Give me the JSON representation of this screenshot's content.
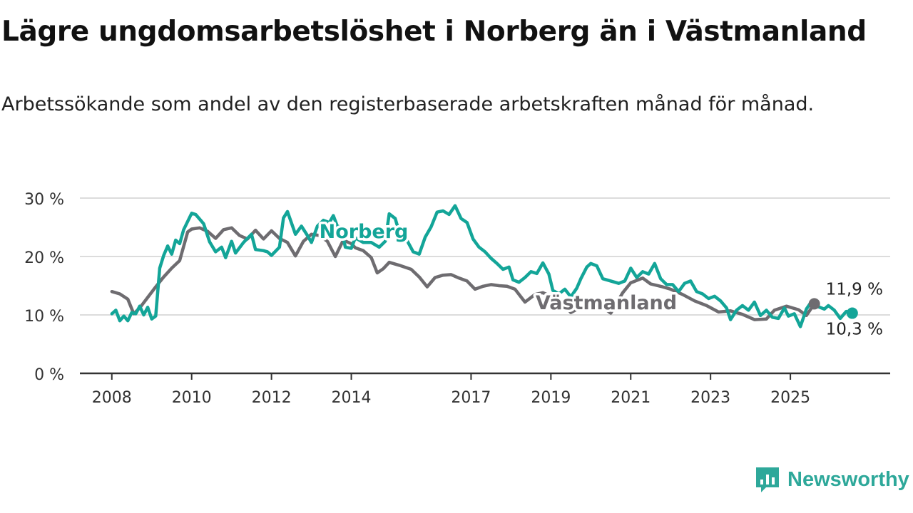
{
  "title": "Lägre ungdomsarbetslöshet i Norberg än i Västmanland",
  "subtitle": "Arbetssökande som andel av den registerbaserade arbetskraften månad för månad.",
  "brand": "Newsworthy",
  "colors": {
    "norberg": "#13a598",
    "vastmanland": "#6e6c70",
    "grid": "#dcdcdc",
    "axis": "#333333"
  },
  "chart_data": {
    "type": "line",
    "ylim": [
      0,
      30
    ],
    "y_ticks": [
      0,
      10,
      20,
      30
    ],
    "y_tick_labels": [
      "0 %",
      "10 %",
      "20 %",
      "30 %"
    ],
    "x_ticks": [
      2008,
      2010,
      2012,
      2014,
      2017,
      2019,
      2021,
      2023,
      2025
    ],
    "x_tick_labels": [
      "2008",
      "2010",
      "2012",
      "2014",
      "2017",
      "2019",
      "2021",
      "2023",
      "2025"
    ],
    "xlim": [
      2007.2,
      2027.5
    ],
    "grid": true,
    "series": [
      {
        "name": "Västmanland",
        "end_label": "11,9 %",
        "points": [
          [
            2008.0,
            14.0
          ],
          [
            2008.2,
            13.6
          ],
          [
            2008.4,
            12.7
          ],
          [
            2008.55,
            10.2
          ],
          [
            2008.7,
            11.2
          ],
          [
            2008.9,
            13.0
          ],
          [
            2009.1,
            14.8
          ],
          [
            2009.3,
            16.5
          ],
          [
            2009.5,
            18.0
          ],
          [
            2009.7,
            19.3
          ],
          [
            2009.9,
            24.2
          ],
          [
            2010.0,
            24.7
          ],
          [
            2010.2,
            24.9
          ],
          [
            2010.4,
            24.3
          ],
          [
            2010.6,
            23.1
          ],
          [
            2010.8,
            24.6
          ],
          [
            2011.0,
            24.9
          ],
          [
            2011.2,
            23.6
          ],
          [
            2011.4,
            23.0
          ],
          [
            2011.6,
            24.5
          ],
          [
            2011.8,
            23.0
          ],
          [
            2012.0,
            24.4
          ],
          [
            2012.2,
            23.1
          ],
          [
            2012.4,
            22.4
          ],
          [
            2012.6,
            20.1
          ],
          [
            2012.8,
            22.6
          ],
          [
            2013.0,
            23.8
          ],
          [
            2013.2,
            23.6
          ],
          [
            2013.4,
            22.6
          ],
          [
            2013.6,
            20.0
          ],
          [
            2013.8,
            22.8
          ],
          [
            2014.0,
            22.2
          ],
          [
            2014.1,
            21.5
          ],
          [
            2014.3,
            21.0
          ],
          [
            2014.5,
            19.8
          ],
          [
            2014.65,
            17.2
          ],
          [
            2014.8,
            17.9
          ],
          [
            2014.95,
            19.0
          ],
          [
            2015.2,
            18.5
          ],
          [
            2015.5,
            17.8
          ],
          [
            2015.7,
            16.5
          ],
          [
            2015.9,
            14.8
          ],
          [
            2016.1,
            16.4
          ],
          [
            2016.3,
            16.8
          ],
          [
            2016.5,
            16.9
          ],
          [
            2016.7,
            16.3
          ],
          [
            2016.9,
            15.8
          ],
          [
            2017.1,
            14.4
          ],
          [
            2017.3,
            14.9
          ],
          [
            2017.5,
            15.2
          ],
          [
            2017.7,
            15.0
          ],
          [
            2017.9,
            14.9
          ],
          [
            2018.1,
            14.4
          ],
          [
            2018.35,
            12.2
          ],
          [
            2018.6,
            13.5
          ],
          [
            2018.8,
            13.8
          ],
          [
            2019.0,
            13.2
          ],
          [
            2019.2,
            12.8
          ],
          [
            2019.5,
            10.4
          ],
          [
            2019.8,
            11.5
          ],
          [
            2020.2,
            11.8
          ],
          [
            2020.5,
            10.3
          ],
          [
            2020.8,
            13.8
          ],
          [
            2021.0,
            15.5
          ],
          [
            2021.3,
            16.3
          ],
          [
            2021.5,
            15.3
          ],
          [
            2021.8,
            14.8
          ],
          [
            2022.0,
            14.4
          ],
          [
            2022.3,
            13.5
          ],
          [
            2022.6,
            12.4
          ],
          [
            2022.9,
            11.6
          ],
          [
            2023.2,
            10.5
          ],
          [
            2023.5,
            10.7
          ],
          [
            2023.8,
            10.1
          ],
          [
            2024.1,
            9.2
          ],
          [
            2024.4,
            9.3
          ],
          [
            2024.6,
            10.8
          ],
          [
            2024.9,
            11.5
          ],
          [
            2025.2,
            10.9
          ],
          [
            2025.4,
            9.9
          ],
          [
            2025.6,
            11.9
          ]
        ]
      },
      {
        "name": "Norberg",
        "end_label": "10,3 %",
        "points": [
          [
            2008.0,
            10.2
          ],
          [
            2008.1,
            10.8
          ],
          [
            2008.2,
            9.0
          ],
          [
            2008.3,
            9.8
          ],
          [
            2008.4,
            9.0
          ],
          [
            2008.5,
            10.4
          ],
          [
            2008.6,
            10.2
          ],
          [
            2008.7,
            11.5
          ],
          [
            2008.8,
            10.0
          ],
          [
            2008.9,
            11.3
          ],
          [
            2009.0,
            9.3
          ],
          [
            2009.1,
            9.8
          ],
          [
            2009.2,
            18.0
          ],
          [
            2009.3,
            20.2
          ],
          [
            2009.4,
            21.8
          ],
          [
            2009.5,
            20.4
          ],
          [
            2009.6,
            22.8
          ],
          [
            2009.7,
            22.2
          ],
          [
            2009.8,
            24.6
          ],
          [
            2009.9,
            26.0
          ],
          [
            2010.0,
            27.4
          ],
          [
            2010.1,
            27.2
          ],
          [
            2010.2,
            26.4
          ],
          [
            2010.3,
            25.6
          ],
          [
            2010.45,
            22.5
          ],
          [
            2010.6,
            20.8
          ],
          [
            2010.75,
            21.6
          ],
          [
            2010.85,
            19.8
          ],
          [
            2011.0,
            22.6
          ],
          [
            2011.1,
            20.6
          ],
          [
            2011.3,
            22.4
          ],
          [
            2011.5,
            23.8
          ],
          [
            2011.6,
            21.2
          ],
          [
            2011.8,
            21.0
          ],
          [
            2011.9,
            20.8
          ],
          [
            2012.0,
            20.2
          ],
          [
            2012.2,
            21.6
          ],
          [
            2012.3,
            26.6
          ],
          [
            2012.4,
            27.7
          ],
          [
            2012.6,
            23.8
          ],
          [
            2012.75,
            25.2
          ],
          [
            2012.9,
            23.6
          ],
          [
            2013.0,
            22.4
          ],
          [
            2013.15,
            25.2
          ],
          [
            2013.3,
            26.2
          ],
          [
            2013.45,
            25.8
          ],
          [
            2013.55,
            27.0
          ],
          [
            2013.65,
            25.2
          ],
          [
            2013.75,
            25.0
          ],
          [
            2013.85,
            21.6
          ],
          [
            2014.0,
            21.4
          ],
          [
            2014.1,
            23.2
          ],
          [
            2014.3,
            22.4
          ],
          [
            2014.5,
            22.4
          ],
          [
            2014.7,
            21.6
          ],
          [
            2014.85,
            22.6
          ],
          [
            2014.95,
            27.3
          ],
          [
            2015.1,
            26.5
          ],
          [
            2015.25,
            23.0
          ],
          [
            2015.4,
            22.7
          ],
          [
            2015.55,
            20.8
          ],
          [
            2015.7,
            20.4
          ],
          [
            2015.85,
            23.3
          ],
          [
            2016.0,
            25.1
          ],
          [
            2016.15,
            27.6
          ],
          [
            2016.3,
            27.8
          ],
          [
            2016.45,
            27.2
          ],
          [
            2016.6,
            28.7
          ],
          [
            2016.75,
            26.5
          ],
          [
            2016.9,
            25.8
          ],
          [
            2017.05,
            23.0
          ],
          [
            2017.2,
            21.6
          ],
          [
            2017.35,
            20.8
          ],
          [
            2017.5,
            19.7
          ],
          [
            2017.65,
            18.8
          ],
          [
            2017.8,
            17.8
          ],
          [
            2017.95,
            18.2
          ],
          [
            2018.05,
            16.0
          ],
          [
            2018.2,
            15.6
          ],
          [
            2018.35,
            16.4
          ],
          [
            2018.5,
            17.4
          ],
          [
            2018.65,
            17.1
          ],
          [
            2018.8,
            18.9
          ],
          [
            2018.95,
            17.0
          ],
          [
            2019.05,
            14.2
          ],
          [
            2019.2,
            13.6
          ],
          [
            2019.35,
            14.4
          ],
          [
            2019.5,
            13.1
          ],
          [
            2019.65,
            14.6
          ],
          [
            2019.75,
            16.2
          ],
          [
            2019.9,
            18.2
          ],
          [
            2020.0,
            18.8
          ],
          [
            2020.15,
            18.4
          ],
          [
            2020.3,
            16.2
          ],
          [
            2020.5,
            15.8
          ],
          [
            2020.7,
            15.4
          ],
          [
            2020.85,
            15.8
          ],
          [
            2021.0,
            18.0
          ],
          [
            2021.15,
            16.4
          ],
          [
            2021.3,
            17.4
          ],
          [
            2021.45,
            17.0
          ],
          [
            2021.6,
            18.8
          ],
          [
            2021.75,
            16.2
          ],
          [
            2021.9,
            15.2
          ],
          [
            2022.05,
            15.2
          ],
          [
            2022.2,
            14.0
          ],
          [
            2022.35,
            15.4
          ],
          [
            2022.5,
            15.8
          ],
          [
            2022.65,
            14.0
          ],
          [
            2022.8,
            13.6
          ],
          [
            2022.95,
            12.8
          ],
          [
            2023.1,
            13.2
          ],
          [
            2023.25,
            12.4
          ],
          [
            2023.4,
            11.2
          ],
          [
            2023.5,
            9.2
          ],
          [
            2023.65,
            10.8
          ],
          [
            2023.8,
            11.6
          ],
          [
            2023.95,
            10.8
          ],
          [
            2024.1,
            12.2
          ],
          [
            2024.25,
            9.9
          ],
          [
            2024.4,
            10.8
          ],
          [
            2024.55,
            9.6
          ],
          [
            2024.7,
            9.4
          ],
          [
            2024.85,
            11.2
          ],
          [
            2024.95,
            9.8
          ],
          [
            2025.1,
            10.2
          ],
          [
            2025.25,
            8.0
          ],
          [
            2025.4,
            11.0
          ],
          [
            2025.55,
            12.5
          ],
          [
            2025.7,
            11.4
          ],
          [
            2025.85,
            11.0
          ],
          [
            2025.95,
            11.6
          ],
          [
            2026.1,
            10.8
          ],
          [
            2026.25,
            9.4
          ],
          [
            2026.4,
            10.6
          ],
          [
            2026.55,
            10.3
          ]
        ]
      }
    ]
  }
}
